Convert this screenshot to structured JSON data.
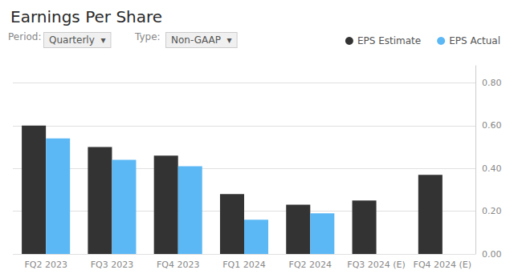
{
  "chart_data": {
    "type": "bar",
    "title": "Earnings Per Share",
    "categories": [
      "FQ2 2023",
      "FQ3 2023",
      "FQ4 2023",
      "FQ1 2024",
      "FQ2 2024",
      "FQ3 2024 (E)",
      "FQ4 2024 (E)"
    ],
    "series": [
      {
        "name": "EPS Estimate",
        "color": "#333333",
        "values": [
          0.6,
          0.5,
          0.46,
          0.28,
          0.23,
          0.25,
          0.37
        ]
      },
      {
        "name": "EPS Actual",
        "color": "#5BB8F5",
        "values": [
          0.54,
          0.44,
          0.41,
          0.16,
          0.19,
          null,
          null
        ]
      }
    ],
    "ylim": [
      0.0,
      0.88
    ],
    "yticks": [
      {
        "value": 0.0,
        "label": "0.00"
      },
      {
        "value": 0.2,
        "label": "0.20"
      },
      {
        "value": 0.4,
        "label": "0.40"
      },
      {
        "value": 0.6,
        "label": "0.60"
      },
      {
        "value": 0.8,
        "label": "0.80"
      }
    ],
    "grid": true,
    "legend": "upper right",
    "annotations": [
      "Period:",
      "Quarterly  ▾",
      "Type:",
      "Non-GAAP  ▾"
    ]
  }
}
